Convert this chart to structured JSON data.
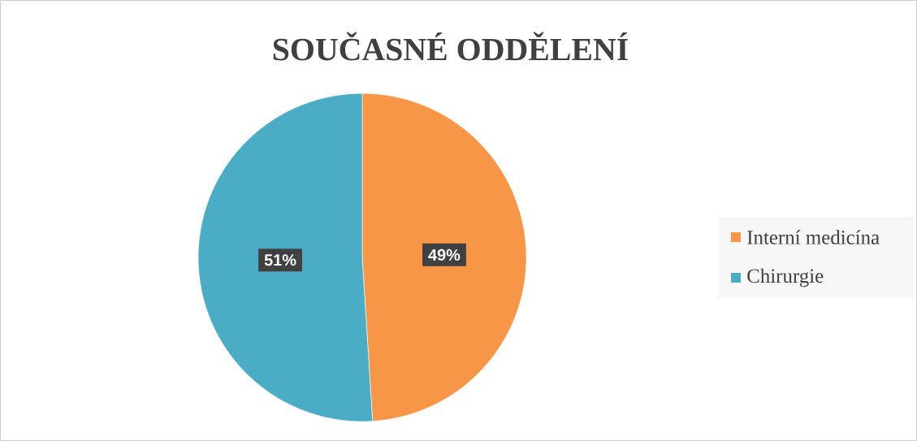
{
  "chart_data": {
    "type": "pie",
    "title": "SOUČASNÉ ODDĚLENÍ",
    "categories": [
      "Interní medicína",
      "Chirurgie"
    ],
    "values": [
      49,
      51
    ],
    "colors": [
      "#f79646",
      "#4bacc6"
    ],
    "value_labels": [
      "49%",
      "51%"
    ],
    "legend": "right"
  }
}
